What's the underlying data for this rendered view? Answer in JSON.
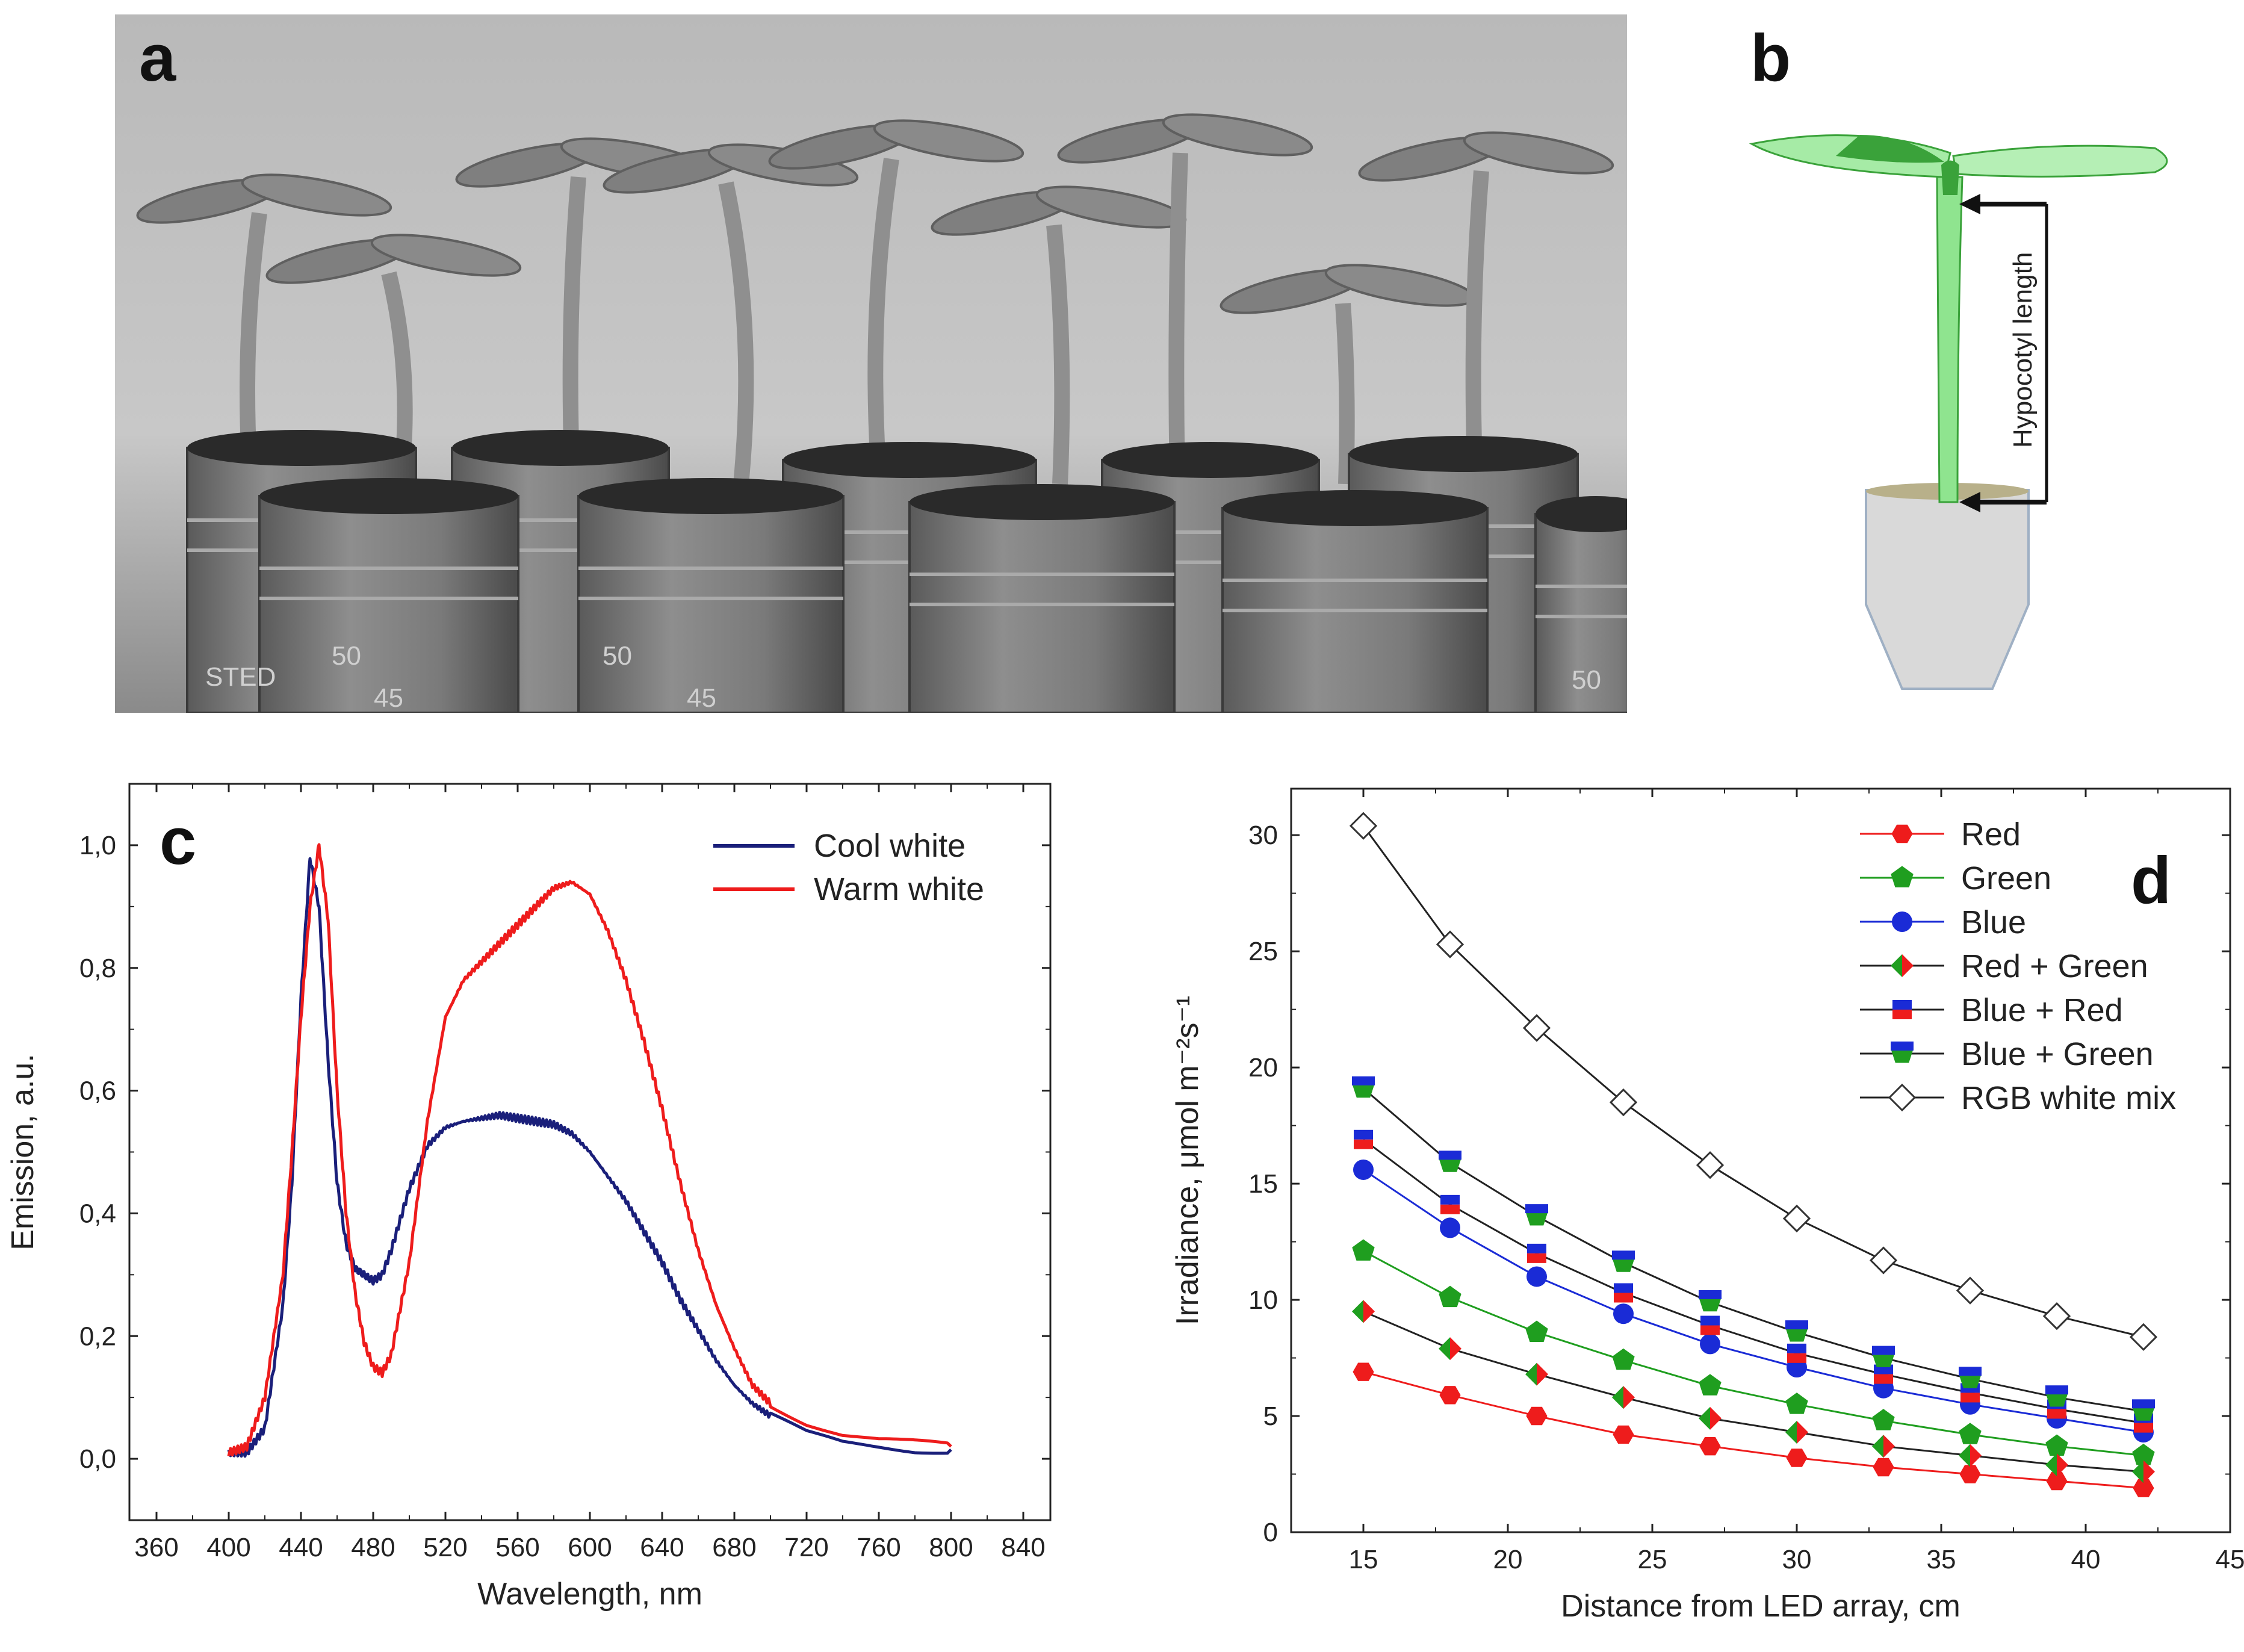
{
  "panels": {
    "a": {
      "letter": "a"
    },
    "b": {
      "letter": "b",
      "annotation": "Hypocotyl length"
    },
    "c": {
      "letter": "c"
    },
    "d": {
      "letter": "d"
    }
  },
  "photo_text": {
    "pot_marks": [
      "50",
      "50",
      "50",
      "45",
      "45",
      "STED"
    ]
  },
  "colors": {
    "cool_white": "#1a1f7a",
    "warm_white": "#ee1c1c",
    "red": "#ee1c1c",
    "green": "#1f9e1f",
    "blue": "#1a2bd6",
    "black": "#222222",
    "seedling_green": "#8fe48f",
    "cotyledon_dark": "#3aa23a",
    "pot": "#d6d6d6"
  },
  "chart_data": [
    {
      "panel": "c",
      "type": "line",
      "xlabel": "Wavelength, nm",
      "ylabel": "Emission, a.u.",
      "xlim": [
        345,
        855
      ],
      "ylim": [
        -0.1,
        1.1
      ],
      "xticks": [
        "360",
        "400",
        "440",
        "480",
        "520",
        "560",
        "600",
        "640",
        "680",
        "720",
        "760",
        "800",
        "840"
      ],
      "yticks": [
        "0,0",
        "0,2",
        "0,4",
        "0,6",
        "0,8",
        "1,0"
      ],
      "legend_position": "top-right",
      "x": [
        400,
        410,
        420,
        430,
        435,
        440,
        445,
        450,
        455,
        460,
        465,
        470,
        475,
        480,
        485,
        490,
        500,
        510,
        520,
        530,
        540,
        550,
        560,
        570,
        580,
        590,
        600,
        610,
        620,
        630,
        640,
        650,
        660,
        670,
        680,
        690,
        700,
        720,
        740,
        760,
        780,
        800
      ],
      "series": [
        {
          "name": "Cool white",
          "color_key": "cool_white",
          "values": [
            0.01,
            0.01,
            0.05,
            0.25,
            0.45,
            0.75,
            0.98,
            0.9,
            0.65,
            0.45,
            0.35,
            0.31,
            0.3,
            0.29,
            0.3,
            0.34,
            0.44,
            0.51,
            0.54,
            0.55,
            0.555,
            0.56,
            0.555,
            0.55,
            0.545,
            0.53,
            0.5,
            0.46,
            0.42,
            0.37,
            0.32,
            0.26,
            0.21,
            0.16,
            0.12,
            0.09,
            0.07,
            0.04,
            0.025,
            0.02,
            0.015,
            0.015
          ]
        },
        {
          "name": "Warm white",
          "color_key": "warm_white",
          "values": [
            0.01,
            0.02,
            0.1,
            0.3,
            0.5,
            0.72,
            0.9,
            1.0,
            0.88,
            0.6,
            0.4,
            0.27,
            0.19,
            0.15,
            0.14,
            0.17,
            0.32,
            0.55,
            0.72,
            0.78,
            0.81,
            0.84,
            0.87,
            0.9,
            0.93,
            0.94,
            0.92,
            0.86,
            0.78,
            0.68,
            0.57,
            0.45,
            0.34,
            0.25,
            0.18,
            0.12,
            0.09,
            0.06,
            0.04,
            0.03,
            0.025,
            0.02
          ]
        }
      ]
    },
    {
      "panel": "d",
      "type": "line",
      "xlabel": "Distance from LED array, cm",
      "ylabel": "Irradiance, μmol m⁻²s⁻¹",
      "xlim": [
        12.5,
        45
      ],
      "ylim": [
        0,
        32
      ],
      "xticks": [
        "15",
        "20",
        "25",
        "30",
        "35",
        "40",
        "45"
      ],
      "yticks": [
        "0",
        "5",
        "10",
        "15",
        "20",
        "25",
        "30"
      ],
      "legend_position": "top-right",
      "x": [
        15,
        18,
        21,
        24,
        27,
        30,
        33,
        36,
        39,
        42
      ],
      "series": [
        {
          "name": "Red",
          "marker": "hexagon",
          "fill": "red",
          "line": "red",
          "values": [
            6.9,
            5.9,
            5.0,
            4.2,
            3.7,
            3.2,
            2.8,
            2.5,
            2.2,
            1.9
          ]
        },
        {
          "name": "Green",
          "marker": "pentagon",
          "fill": "green",
          "line": "green",
          "values": [
            12.1,
            10.1,
            8.6,
            7.4,
            6.3,
            5.5,
            4.8,
            4.2,
            3.7,
            3.3
          ]
        },
        {
          "name": "Blue",
          "marker": "circle",
          "fill": "blue",
          "line": "blue",
          "values": [
            15.6,
            13.1,
            11.0,
            9.4,
            8.1,
            7.1,
            6.2,
            5.5,
            4.9,
            4.3
          ]
        },
        {
          "name": "Red + Green",
          "marker": "diamond-split",
          "fill": "red",
          "fill2": "green",
          "line": "black",
          "values": [
            9.5,
            7.9,
            6.8,
            5.8,
            4.9,
            4.3,
            3.7,
            3.3,
            2.9,
            2.6
          ]
        },
        {
          "name": "Blue + Red",
          "marker": "square-split",
          "fill": "blue",
          "fill2": "red",
          "line": "black",
          "values": [
            16.9,
            14.1,
            12.0,
            10.3,
            8.9,
            7.7,
            6.8,
            6.0,
            5.3,
            4.7
          ]
        },
        {
          "name": "Blue + Green",
          "marker": "pentagon-split",
          "fill": "blue",
          "fill2": "green",
          "line": "black",
          "values": [
            19.1,
            15.9,
            13.6,
            11.6,
            9.9,
            8.6,
            7.5,
            6.6,
            5.8,
            5.2
          ]
        },
        {
          "name": "RGB white mix",
          "marker": "diamond-open",
          "fill": "white",
          "line": "black",
          "values": [
            30.4,
            25.3,
            21.7,
            18.5,
            15.8,
            13.5,
            11.7,
            10.4,
            9.3,
            8.4
          ]
        }
      ]
    }
  ]
}
